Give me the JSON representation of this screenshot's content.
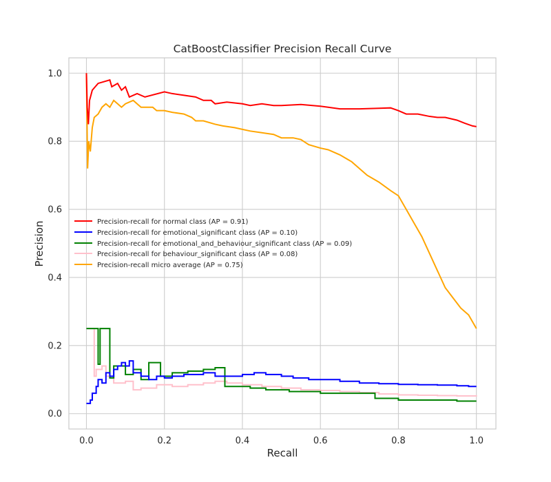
{
  "chart_data": {
    "type": "line",
    "title": "CatBoostClassifier Precision Recall Curve",
    "xlabel": "Recall",
    "ylabel": "Precision",
    "xlim": [
      -0.045,
      1.05
    ],
    "ylim": [
      -0.045,
      1.045
    ],
    "xticks": [
      0.0,
      0.2,
      0.4,
      0.6,
      0.8,
      1.0
    ],
    "yticks": [
      0.0,
      0.2,
      0.4,
      0.6,
      0.8,
      1.0
    ],
    "xtick_labels": [
      "0.0",
      "0.2",
      "0.4",
      "0.6",
      "0.8",
      "1.0"
    ],
    "ytick_labels": [
      "0.0",
      "0.2",
      "0.4",
      "0.6",
      "0.8",
      "1.0"
    ],
    "grid": true,
    "legend_position": "center-left",
    "series": [
      {
        "name": "Precision-recall for normal class (AP = 0.91)",
        "color": "#ff0000",
        "step": false,
        "points": [
          [
            0.0,
            1.0
          ],
          [
            0.002,
            0.9
          ],
          [
            0.005,
            0.85
          ],
          [
            0.008,
            0.92
          ],
          [
            0.015,
            0.95
          ],
          [
            0.03,
            0.97
          ],
          [
            0.06,
            0.98
          ],
          [
            0.065,
            0.96
          ],
          [
            0.08,
            0.97
          ],
          [
            0.09,
            0.95
          ],
          [
            0.1,
            0.96
          ],
          [
            0.11,
            0.93
          ],
          [
            0.13,
            0.94
          ],
          [
            0.15,
            0.93
          ],
          [
            0.2,
            0.945
          ],
          [
            0.22,
            0.94
          ],
          [
            0.25,
            0.935
          ],
          [
            0.28,
            0.93
          ],
          [
            0.3,
            0.92
          ],
          [
            0.32,
            0.92
          ],
          [
            0.33,
            0.91
          ],
          [
            0.36,
            0.915
          ],
          [
            0.4,
            0.91
          ],
          [
            0.42,
            0.905
          ],
          [
            0.45,
            0.91
          ],
          [
            0.48,
            0.905
          ],
          [
            0.5,
            0.905
          ],
          [
            0.55,
            0.908
          ],
          [
            0.58,
            0.905
          ],
          [
            0.6,
            0.903
          ],
          [
            0.62,
            0.9
          ],
          [
            0.65,
            0.895
          ],
          [
            0.7,
            0.895
          ],
          [
            0.75,
            0.897
          ],
          [
            0.78,
            0.898
          ],
          [
            0.8,
            0.89
          ],
          [
            0.82,
            0.88
          ],
          [
            0.85,
            0.88
          ],
          [
            0.88,
            0.873
          ],
          [
            0.9,
            0.87
          ],
          [
            0.92,
            0.87
          ],
          [
            0.95,
            0.862
          ],
          [
            0.97,
            0.853
          ],
          [
            0.99,
            0.845
          ],
          [
            1.0,
            0.843
          ]
        ]
      },
      {
        "name": "Precision-recall for emotional_significant class (AP = 0.10)",
        "color": "#0000ff",
        "step": true,
        "points": [
          [
            0.0,
            0.03
          ],
          [
            0.01,
            0.04
          ],
          [
            0.015,
            0.06
          ],
          [
            0.025,
            0.08
          ],
          [
            0.03,
            0.1
          ],
          [
            0.04,
            0.09
          ],
          [
            0.05,
            0.12
          ],
          [
            0.06,
            0.11
          ],
          [
            0.07,
            0.13
          ],
          [
            0.08,
            0.14
          ],
          [
            0.09,
            0.15
          ],
          [
            0.1,
            0.14
          ],
          [
            0.11,
            0.155
          ],
          [
            0.12,
            0.12
          ],
          [
            0.14,
            0.11
          ],
          [
            0.16,
            0.1
          ],
          [
            0.18,
            0.11
          ],
          [
            0.2,
            0.105
          ],
          [
            0.22,
            0.11
          ],
          [
            0.25,
            0.115
          ],
          [
            0.28,
            0.115
          ],
          [
            0.3,
            0.12
          ],
          [
            0.33,
            0.11
          ],
          [
            0.36,
            0.11
          ],
          [
            0.4,
            0.115
          ],
          [
            0.43,
            0.12
          ],
          [
            0.46,
            0.115
          ],
          [
            0.5,
            0.11
          ],
          [
            0.53,
            0.105
          ],
          [
            0.57,
            0.1
          ],
          [
            0.6,
            0.1
          ],
          [
            0.65,
            0.095
          ],
          [
            0.7,
            0.09
          ],
          [
            0.75,
            0.088
          ],
          [
            0.8,
            0.086
          ],
          [
            0.85,
            0.085
          ],
          [
            0.9,
            0.084
          ],
          [
            0.95,
            0.082
          ],
          [
            0.98,
            0.08
          ],
          [
            1.0,
            0.08
          ]
        ]
      },
      {
        "name": "Precision-recall for emotional_and_behaviour_significant class (AP = 0.09)",
        "color": "#008000",
        "step": true,
        "points": [
          [
            0.0,
            0.25
          ],
          [
            0.03,
            0.145
          ],
          [
            0.035,
            0.25
          ],
          [
            0.06,
            0.105
          ],
          [
            0.07,
            0.14
          ],
          [
            0.1,
            0.115
          ],
          [
            0.12,
            0.13
          ],
          [
            0.14,
            0.1
          ],
          [
            0.16,
            0.15
          ],
          [
            0.19,
            0.11
          ],
          [
            0.22,
            0.12
          ],
          [
            0.26,
            0.125
          ],
          [
            0.3,
            0.13
          ],
          [
            0.33,
            0.135
          ],
          [
            0.355,
            0.08
          ],
          [
            0.38,
            0.08
          ],
          [
            0.42,
            0.075
          ],
          [
            0.46,
            0.07
          ],
          [
            0.52,
            0.065
          ],
          [
            0.6,
            0.06
          ],
          [
            0.66,
            0.06
          ],
          [
            0.74,
            0.045
          ],
          [
            0.8,
            0.04
          ],
          [
            0.88,
            0.04
          ],
          [
            0.95,
            0.037
          ],
          [
            1.0,
            0.037
          ]
        ]
      },
      {
        "name": "Precision-recall for behaviour_significant class (AP = 0.08)",
        "color": "#ffc0cb",
        "step": true,
        "points": [
          [
            0.0,
            0.25
          ],
          [
            0.02,
            0.11
          ],
          [
            0.025,
            0.13
          ],
          [
            0.04,
            0.14
          ],
          [
            0.05,
            0.11
          ],
          [
            0.07,
            0.09
          ],
          [
            0.1,
            0.095
          ],
          [
            0.12,
            0.07
          ],
          [
            0.14,
            0.075
          ],
          [
            0.18,
            0.085
          ],
          [
            0.22,
            0.08
          ],
          [
            0.26,
            0.085
          ],
          [
            0.3,
            0.09
          ],
          [
            0.33,
            0.095
          ],
          [
            0.36,
            0.09
          ],
          [
            0.4,
            0.085
          ],
          [
            0.45,
            0.08
          ],
          [
            0.5,
            0.075
          ],
          [
            0.55,
            0.07
          ],
          [
            0.6,
            0.068
          ],
          [
            0.65,
            0.065
          ],
          [
            0.7,
            0.062
          ],
          [
            0.75,
            0.058
          ],
          [
            0.8,
            0.055
          ],
          [
            0.85,
            0.054
          ],
          [
            0.9,
            0.053
          ],
          [
            0.95,
            0.052
          ],
          [
            1.0,
            0.05
          ]
        ]
      },
      {
        "name": "Precision-recall micro average (AP = 0.75)",
        "color": "#ffa500",
        "step": false,
        "points": [
          [
            0.0,
            1.0
          ],
          [
            0.003,
            0.72
          ],
          [
            0.006,
            0.8
          ],
          [
            0.01,
            0.77
          ],
          [
            0.015,
            0.84
          ],
          [
            0.02,
            0.87
          ],
          [
            0.03,
            0.88
          ],
          [
            0.04,
            0.9
          ],
          [
            0.05,
            0.91
          ],
          [
            0.06,
            0.9
          ],
          [
            0.07,
            0.92
          ],
          [
            0.08,
            0.91
          ],
          [
            0.09,
            0.9
          ],
          [
            0.1,
            0.91
          ],
          [
            0.12,
            0.92
          ],
          [
            0.14,
            0.9
          ],
          [
            0.17,
            0.9
          ],
          [
            0.18,
            0.89
          ],
          [
            0.2,
            0.89
          ],
          [
            0.22,
            0.885
          ],
          [
            0.25,
            0.88
          ],
          [
            0.27,
            0.87
          ],
          [
            0.28,
            0.86
          ],
          [
            0.3,
            0.86
          ],
          [
            0.33,
            0.85
          ],
          [
            0.35,
            0.845
          ],
          [
            0.38,
            0.84
          ],
          [
            0.4,
            0.835
          ],
          [
            0.42,
            0.83
          ],
          [
            0.45,
            0.825
          ],
          [
            0.48,
            0.82
          ],
          [
            0.5,
            0.81
          ],
          [
            0.53,
            0.81
          ],
          [
            0.55,
            0.805
          ],
          [
            0.57,
            0.79
          ],
          [
            0.6,
            0.78
          ],
          [
            0.62,
            0.775
          ],
          [
            0.65,
            0.76
          ],
          [
            0.68,
            0.74
          ],
          [
            0.7,
            0.72
          ],
          [
            0.72,
            0.7
          ],
          [
            0.75,
            0.68
          ],
          [
            0.78,
            0.655
          ],
          [
            0.8,
            0.64
          ],
          [
            0.82,
            0.6
          ],
          [
            0.84,
            0.56
          ],
          [
            0.86,
            0.52
          ],
          [
            0.88,
            0.47
          ],
          [
            0.9,
            0.42
          ],
          [
            0.92,
            0.37
          ],
          [
            0.94,
            0.34
          ],
          [
            0.96,
            0.31
          ],
          [
            0.98,
            0.29
          ],
          [
            1.0,
            0.25
          ]
        ]
      }
    ]
  }
}
